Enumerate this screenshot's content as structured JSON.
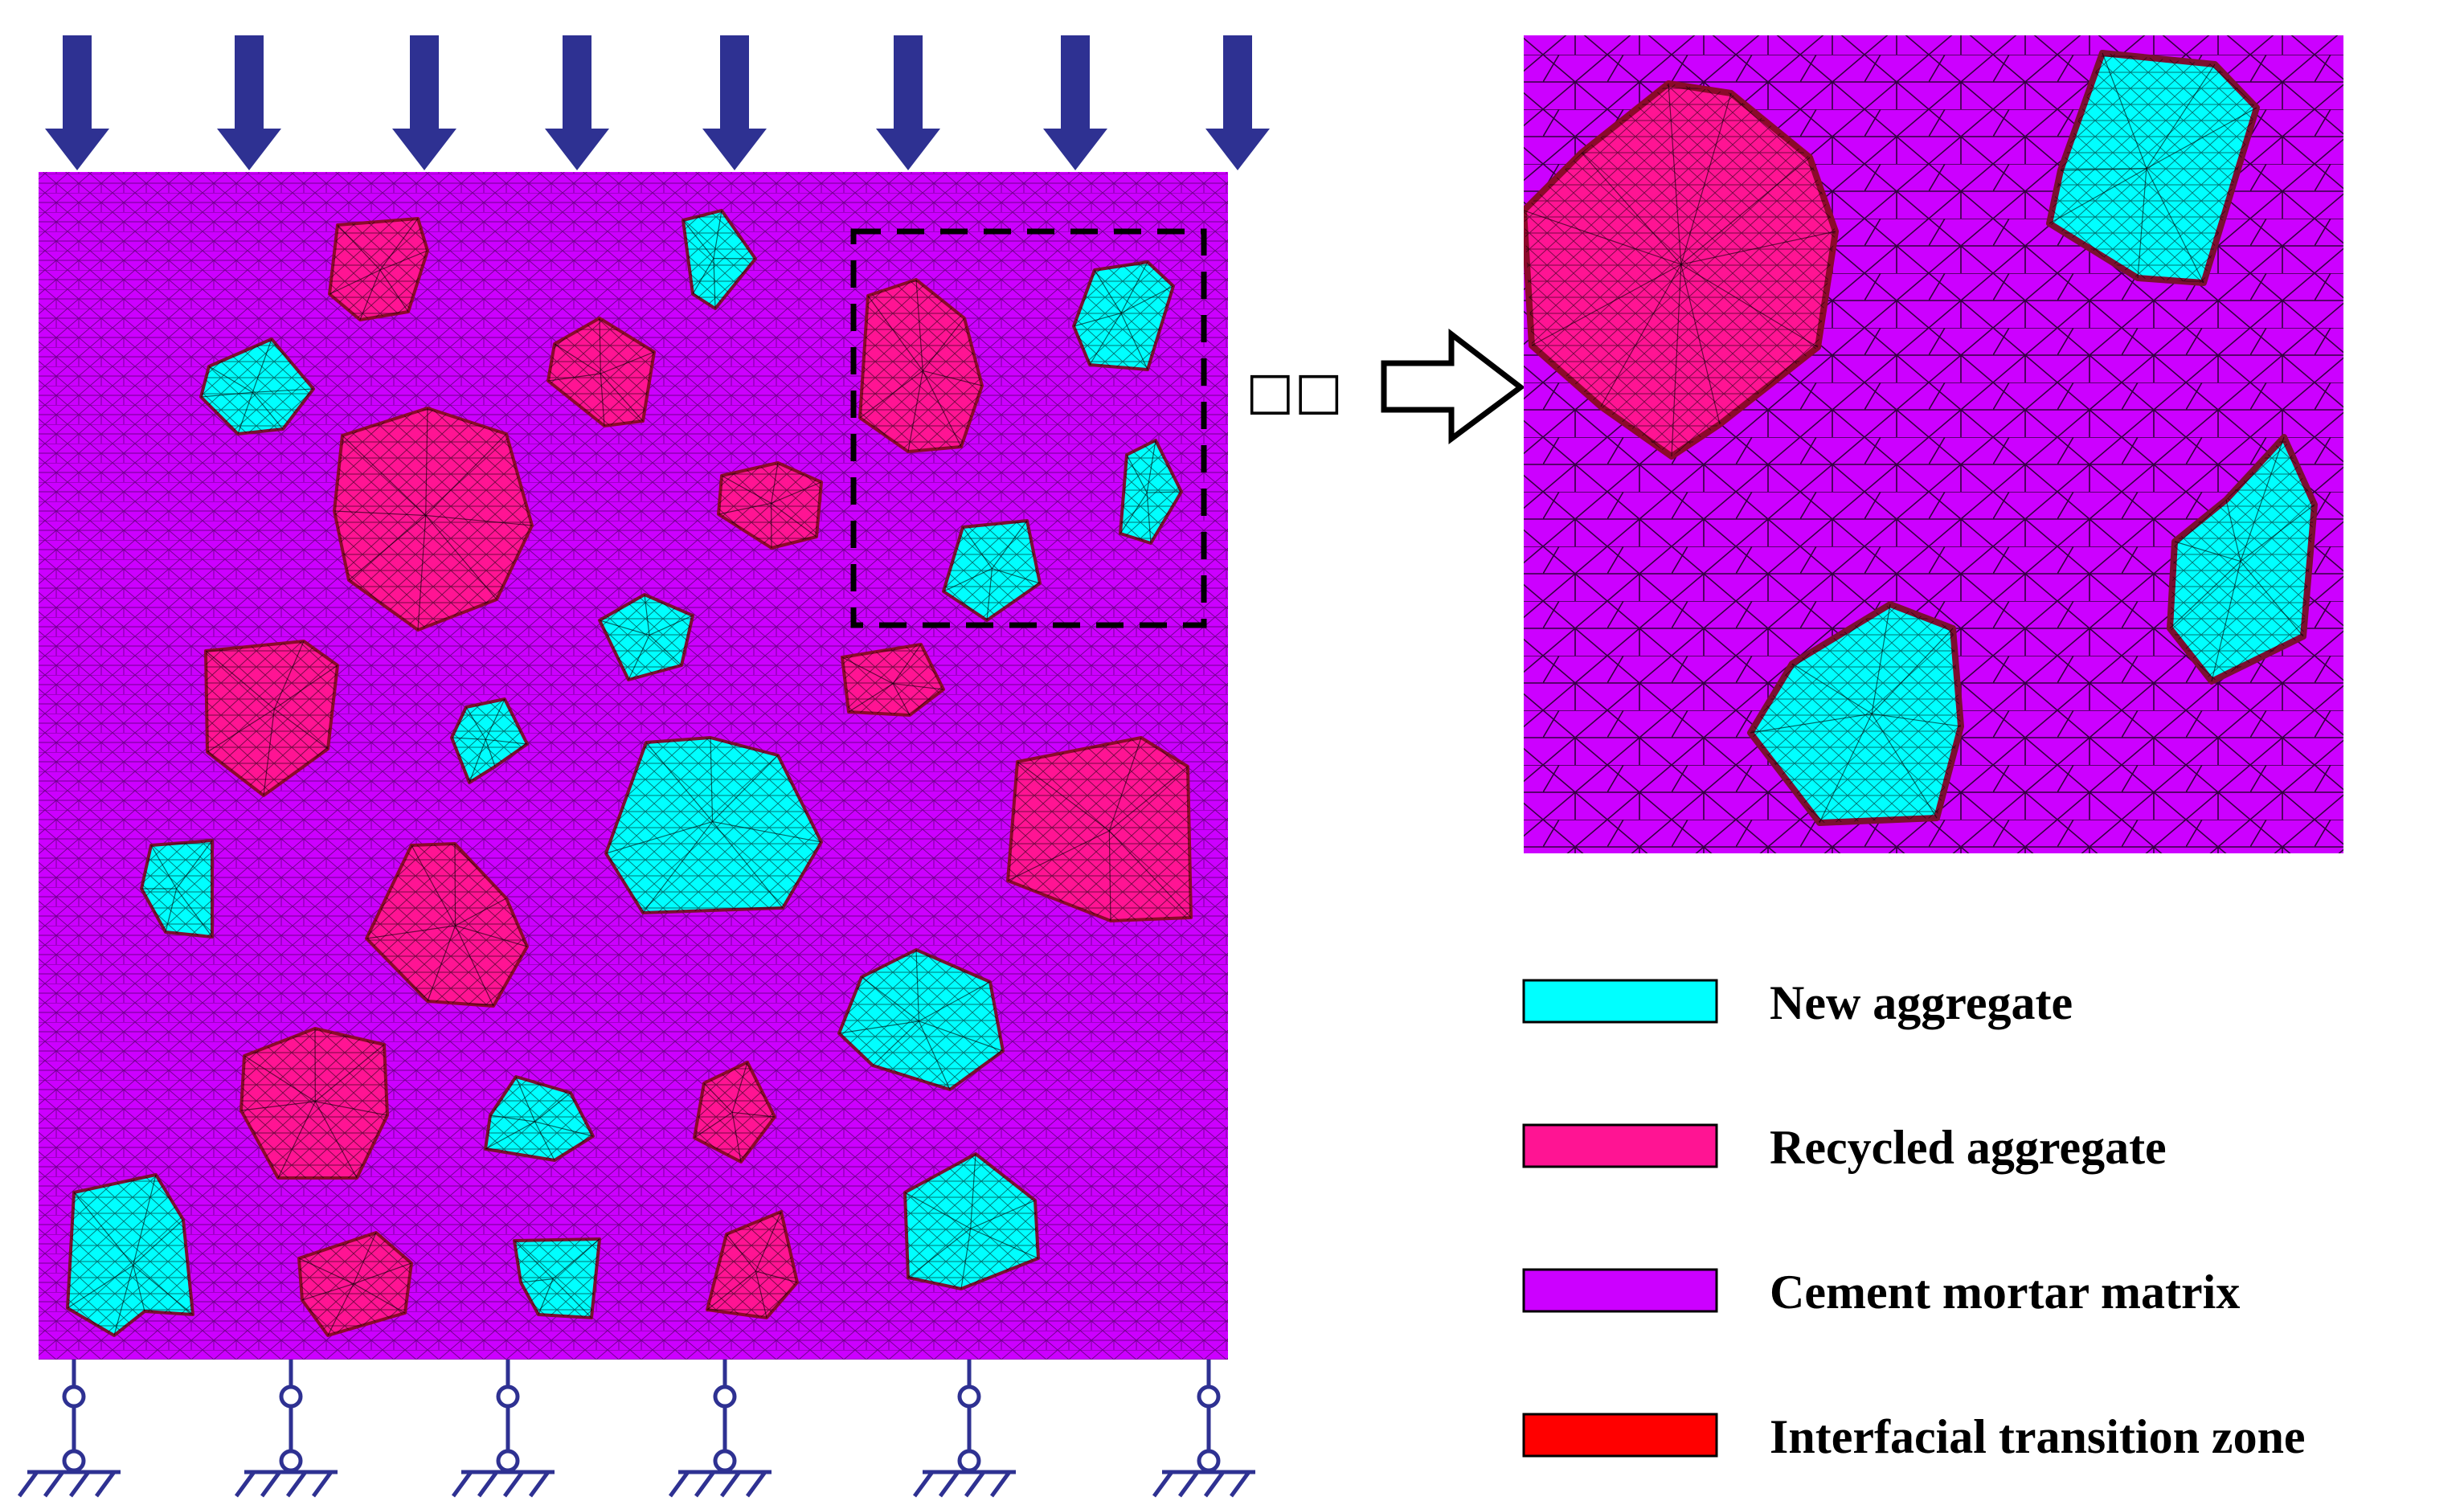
{
  "colors": {
    "new_aggregate": "#00FFFF",
    "recycled_aggregate": "#FF1493",
    "cement_mortar_matrix": "#CC00FF",
    "interfacial_transition_zone": "#FF0000",
    "load_arrow": "#2E3192",
    "mesh_line": "#000000"
  },
  "zoom_indicator": "□□",
  "legend": [
    {
      "key": "new_aggregate",
      "label": "New aggregate",
      "color": "#00FFFF"
    },
    {
      "key": "recycled_aggregate",
      "label": "Recycled aggregate",
      "color": "#FF1493"
    },
    {
      "key": "cement_mortar_matrix",
      "label": "Cement mortar matrix",
      "color": "#CC00FF"
    },
    {
      "key": "interfacial_transition_zone",
      "label": "Interfacial transition zone",
      "color": "#FF0000"
    }
  ],
  "loading": {
    "distributed_arrows": 8,
    "supports": 6,
    "direction": "down"
  }
}
